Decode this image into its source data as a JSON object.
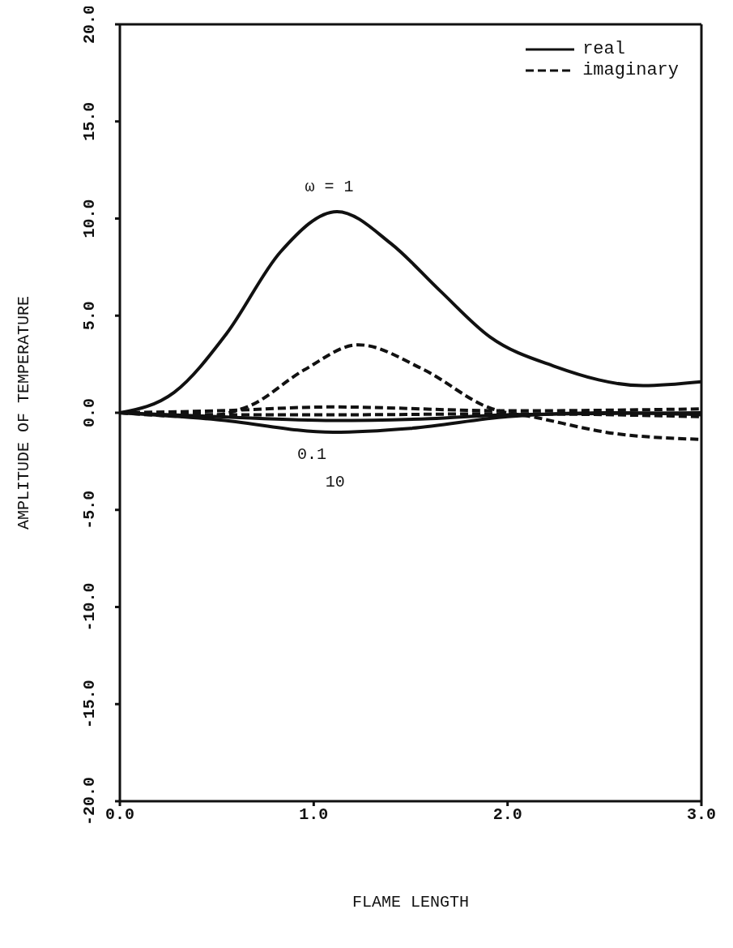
{
  "chart_data": {
    "type": "line",
    "xlabel": "FLAME LENGTH",
    "ylabel": "AMPLITUDE OF TEMPERATURE",
    "xlim": [
      0,
      3
    ],
    "xticks": [
      {
        "value": 0,
        "label": "0.0"
      },
      {
        "value": 1,
        "label": "1.0"
      },
      {
        "value": 2,
        "label": "2.0"
      },
      {
        "value": 3,
        "label": "3.0"
      }
    ],
    "ylim": [
      -20,
      20
    ],
    "yticks": [
      {
        "value": -20,
        "label": "-20.0"
      },
      {
        "value": -15,
        "label": "-15.0"
      },
      {
        "value": -10,
        "label": "-10.0"
      },
      {
        "value": -5,
        "label": "-5.0"
      },
      {
        "value": 0,
        "label": "0.0"
      },
      {
        "value": 5,
        "label": "5.0"
      },
      {
        "value": 10,
        "label": "10.0"
      },
      {
        "value": 15,
        "label": "15.0"
      },
      {
        "value": 20,
        "label": "20.0"
      }
    ],
    "grid": false,
    "legend": "top right",
    "marker": "none",
    "series": [
      {
        "name": "real",
        "color": "#111111",
        "line_style": "solid",
        "x": [
          0,
          0.28,
          0.55,
          0.83,
          1.12,
          1.4,
          1.65,
          1.91,
          2.24,
          2.7,
          3
        ],
        "values": [
          0,
          1.05,
          4.07,
          8.3,
          10.36,
          8.7,
          6.3,
          3.9,
          2.4,
          1.4,
          1.6
        ]
      },
      {
        "name": "imaginary",
        "color": "#111111",
        "line_style": "dashed",
        "x": [
          0,
          0.4,
          0.67,
          0.95,
          1.23,
          1.56,
          1.91,
          2.15,
          2.54,
          3
        ],
        "values": [
          0,
          -0.2,
          0.36,
          2.2,
          3.5,
          2.26,
          0.24,
          -0.25,
          -1.05,
          -1.37
        ]
      },
      {
        "color": "#111111",
        "line_style": "solid",
        "x": [
          0,
          0.5,
          1.1,
          1.6,
          2,
          3
        ],
        "values": [
          0,
          -0.2,
          -0.4,
          -0.3,
          -0.1,
          0
        ]
      },
      {
        "color": "#111111",
        "line_style": "solid",
        "x": [
          0,
          0.5,
          1.1,
          1.5,
          2,
          2.5,
          3
        ],
        "values": [
          0,
          -0.35,
          -1,
          -0.8,
          -0.2,
          0,
          -0.1
        ]
      },
      {
        "color": "#111111",
        "line_style": "dashed",
        "x": [
          0,
          0.5,
          1.1,
          2,
          3
        ],
        "values": [
          0,
          0.1,
          0.3,
          0.1,
          0.2
        ]
      },
      {
        "color": "#111111",
        "line_style": "dashed",
        "x": [
          0,
          0.6,
          1.2,
          2,
          3
        ],
        "values": [
          0,
          -0.1,
          -0.1,
          -0.05,
          -0.2
        ]
      }
    ],
    "annotations": [
      "ω = 1",
      "0.1",
      "10"
    ]
  }
}
